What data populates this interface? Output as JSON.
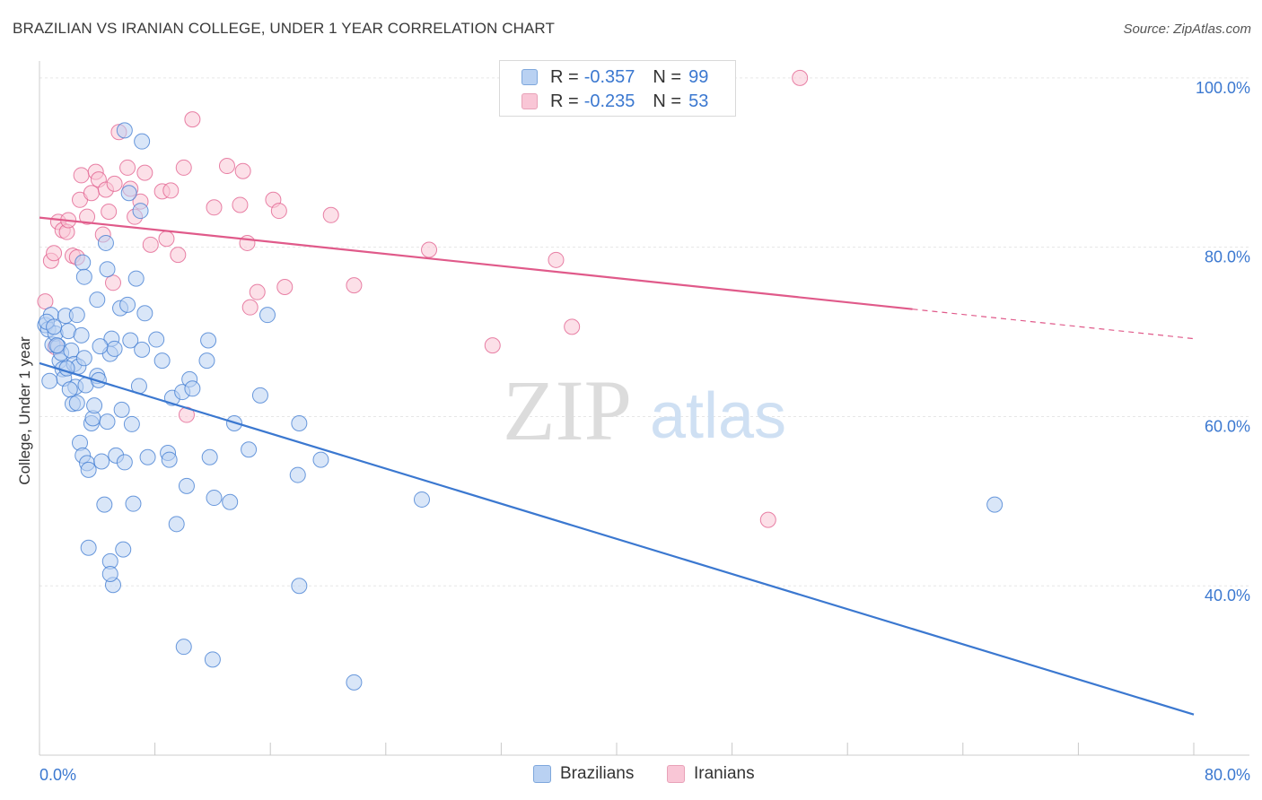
{
  "title": "BRAZILIAN VS IRANIAN COLLEGE, UNDER 1 YEAR CORRELATION CHART",
  "source": "Source: ZipAtlas.com",
  "watermark": {
    "zip": "ZIP",
    "atlas": "atlas"
  },
  "legend": {
    "rows": [
      {
        "r_label": "R =",
        "r_value": "-0.357",
        "n_label": "N =",
        "n_value": "99",
        "color": "#b9d1f2",
        "border": "#7ea7dc"
      },
      {
        "r_label": "R =",
        "r_value": "-0.235",
        "n_label": "N =",
        "n_value": "53",
        "color": "#f9c6d6",
        "border": "#e8a2b8"
      }
    ]
  },
  "bottom_legend": {
    "brazilians": "Brazilians",
    "iranians": "Iranians"
  },
  "chart_data": {
    "type": "scatter",
    "title": "BRAZILIAN VS IRANIAN COLLEGE, UNDER 1 YEAR CORRELATION CHART",
    "xlabel": "",
    "ylabel": "College, Under 1 year",
    "xlim": [
      0,
      80
    ],
    "ylim": [
      20,
      102
    ],
    "x_tick_labels": {
      "left": "0.0%",
      "right": "80.0%"
    },
    "y_ticks": [
      {
        "value": 40,
        "label": "40.0%"
      },
      {
        "value": 60,
        "label": "60.0%"
      },
      {
        "value": 80,
        "label": "80.0%"
      },
      {
        "value": 100,
        "label": "100.0%"
      }
    ],
    "grid": true,
    "legend_position": "top-center",
    "series": [
      {
        "name": "Brazilians",
        "color": "#3b78d0",
        "fill": "#b9d1f2",
        "trend": {
          "x": [
            0,
            80
          ],
          "y": [
            66.3,
            24.8
          ],
          "dashed_from": null
        },
        "points": [
          [
            0.4,
            70.8
          ],
          [
            0.6,
            70.3
          ],
          [
            0.8,
            72.0
          ],
          [
            0.9,
            68.5
          ],
          [
            1.1,
            69.8
          ],
          [
            1.3,
            68.3
          ],
          [
            1.4,
            66.6
          ],
          [
            1.5,
            67.5
          ],
          [
            1.6,
            65.6
          ],
          [
            1.7,
            64.5
          ],
          [
            0.5,
            71.2
          ],
          [
            1.8,
            71.9
          ],
          [
            2.0,
            70.1
          ],
          [
            2.2,
            67.8
          ],
          [
            2.4,
            66.2
          ],
          [
            2.5,
            63.5
          ],
          [
            2.7,
            65.9
          ],
          [
            2.9,
            69.6
          ],
          [
            3.1,
            66.9
          ],
          [
            3.2,
            63.7
          ],
          [
            1.9,
            65.7
          ],
          [
            2.1,
            63.2
          ],
          [
            2.3,
            61.5
          ],
          [
            2.6,
            61.6
          ],
          [
            2.8,
            56.9
          ],
          [
            3.0,
            55.4
          ],
          [
            3.3,
            54.5
          ],
          [
            3.4,
            53.7
          ],
          [
            3.6,
            59.2
          ],
          [
            3.7,
            59.8
          ],
          [
            3.8,
            61.3
          ],
          [
            4.0,
            64.8
          ],
          [
            4.1,
            64.3
          ],
          [
            4.3,
            54.7
          ],
          [
            4.5,
            49.6
          ],
          [
            4.7,
            59.4
          ],
          [
            4.9,
            67.4
          ],
          [
            5.0,
            69.2
          ],
          [
            5.2,
            68.0
          ],
          [
            5.3,
            55.4
          ],
          [
            5.6,
            72.8
          ],
          [
            5.7,
            60.8
          ],
          [
            5.9,
            54.6
          ],
          [
            6.1,
            73.2
          ],
          [
            6.3,
            69.0
          ],
          [
            6.4,
            59.1
          ],
          [
            6.5,
            49.7
          ],
          [
            6.7,
            76.3
          ],
          [
            6.9,
            63.6
          ],
          [
            7.1,
            67.9
          ],
          [
            7.3,
            72.2
          ],
          [
            7.5,
            55.2
          ],
          [
            8.1,
            69.1
          ],
          [
            8.5,
            66.6
          ],
          [
            8.9,
            55.7
          ],
          [
            9.0,
            54.9
          ],
          [
            9.2,
            62.2
          ],
          [
            9.5,
            47.3
          ],
          [
            9.9,
            62.9
          ],
          [
            10.2,
            51.8
          ],
          [
            10.4,
            64.4
          ],
          [
            10.6,
            63.3
          ],
          [
            11.7,
            69.0
          ],
          [
            11.6,
            66.6
          ],
          [
            11.8,
            55.2
          ],
          [
            12.1,
            50.4
          ],
          [
            13.2,
            49.9
          ],
          [
            13.5,
            59.2
          ],
          [
            14.5,
            56.1
          ],
          [
            15.3,
            62.5
          ],
          [
            15.8,
            72.0
          ],
          [
            17.9,
            53.1
          ],
          [
            18.0,
            59.2
          ],
          [
            19.5,
            54.9
          ],
          [
            26.5,
            50.2
          ],
          [
            5.9,
            93.8
          ],
          [
            7.1,
            92.5
          ],
          [
            6.2,
            86.4
          ],
          [
            7.0,
            84.3
          ],
          [
            4.6,
            80.5
          ],
          [
            4.7,
            77.4
          ],
          [
            3.0,
            78.2
          ],
          [
            3.1,
            76.5
          ],
          [
            4.0,
            73.8
          ],
          [
            4.2,
            68.3
          ],
          [
            5.1,
            40.1
          ],
          [
            4.9,
            42.9
          ],
          [
            5.8,
            44.3
          ],
          [
            3.4,
            44.5
          ],
          [
            4.9,
            41.4
          ],
          [
            10.0,
            32.8
          ],
          [
            12.0,
            31.3
          ],
          [
            18.0,
            40.0
          ],
          [
            21.8,
            28.6
          ],
          [
            66.2,
            49.6
          ],
          [
            0.7,
            64.2
          ],
          [
            1.0,
            70.6
          ],
          [
            2.6,
            72.0
          ],
          [
            1.2,
            68.4
          ]
        ]
      },
      {
        "name": "Iranians",
        "color": "#e05a8a",
        "fill": "#f9c6d6",
        "trend": {
          "x": [
            0,
            80
          ],
          "y": [
            83.5,
            69.2
          ],
          "dashed_from": 60.5
        },
        "points": [
          [
            0.4,
            73.6
          ],
          [
            0.8,
            78.4
          ],
          [
            1.0,
            79.3
          ],
          [
            1.3,
            83.0
          ],
          [
            1.6,
            82.0
          ],
          [
            1.9,
            81.8
          ],
          [
            2.0,
            83.2
          ],
          [
            2.3,
            79.0
          ],
          [
            2.6,
            78.8
          ],
          [
            2.8,
            85.6
          ],
          [
            2.9,
            88.5
          ],
          [
            3.3,
            83.6
          ],
          [
            3.6,
            86.4
          ],
          [
            3.9,
            88.9
          ],
          [
            4.1,
            88.0
          ],
          [
            4.4,
            81.5
          ],
          [
            4.6,
            86.8
          ],
          [
            4.8,
            84.2
          ],
          [
            5.1,
            75.8
          ],
          [
            5.2,
            87.5
          ],
          [
            5.5,
            93.6
          ],
          [
            6.1,
            89.4
          ],
          [
            6.3,
            86.9
          ],
          [
            6.6,
            83.6
          ],
          [
            7.0,
            85.4
          ],
          [
            7.3,
            88.8
          ],
          [
            7.7,
            80.3
          ],
          [
            8.5,
            86.6
          ],
          [
            8.8,
            81.0
          ],
          [
            9.1,
            86.7
          ],
          [
            9.6,
            79.1
          ],
          [
            10.0,
            89.4
          ],
          [
            10.2,
            60.2
          ],
          [
            10.6,
            95.1
          ],
          [
            12.1,
            84.7
          ],
          [
            13.0,
            89.6
          ],
          [
            13.9,
            85.0
          ],
          [
            14.1,
            89.0
          ],
          [
            14.4,
            80.5
          ],
          [
            14.6,
            72.9
          ],
          [
            15.1,
            74.7
          ],
          [
            16.2,
            85.6
          ],
          [
            16.6,
            84.3
          ],
          [
            17.0,
            75.3
          ],
          [
            20.2,
            83.8
          ],
          [
            21.8,
            75.5
          ],
          [
            27.0,
            79.7
          ],
          [
            31.4,
            68.4
          ],
          [
            35.8,
            78.5
          ],
          [
            36.9,
            70.6
          ],
          [
            50.5,
            47.8
          ],
          [
            52.7,
            100.0
          ],
          [
            1.1,
            68.2
          ]
        ]
      }
    ]
  }
}
